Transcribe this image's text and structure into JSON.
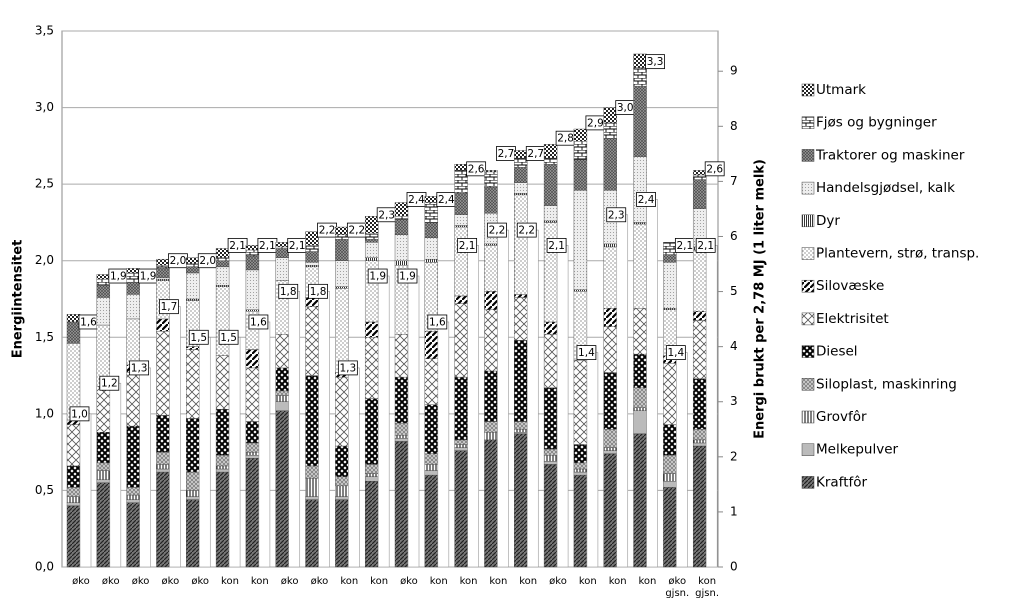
{
  "chart_data": {
    "type": "stacked_bar",
    "y_label": "Energiintensitet",
    "y2_label": "Energi brukt per 2,78 MJ (1 liter melk)",
    "categories": [
      "øko",
      "øko",
      "øko",
      "øko",
      "øko",
      "kon",
      "kon",
      "øko",
      "øko",
      "kon",
      "kon",
      "øko",
      "kon",
      "kon",
      "kon",
      "kon",
      "øko",
      "kon",
      "kon",
      "kon",
      "øko gjsn.",
      "kon gjsn."
    ],
    "series": [
      {
        "name": "Kraftfôr",
        "values": [
          0.4,
          0.55,
          0.42,
          0.62,
          0.44,
          0.62,
          0.71,
          1.02,
          0.44,
          0.44,
          0.56,
          0.82,
          0.6,
          0.76,
          0.83,
          0.87,
          0.67,
          0.6,
          0.74,
          0.87,
          0.52,
          0.79
        ]
      },
      {
        "name": "Melkepulver",
        "values": [
          0.02,
          0.02,
          0.02,
          0.02,
          0.02,
          0.02,
          0.02,
          0.06,
          0.02,
          0.02,
          0.03,
          0.02,
          0.03,
          0.02,
          0,
          0.01,
          0.02,
          0.02,
          0.02,
          0.15,
          0.04,
          0.02
        ]
      },
      {
        "name": "Grovfôr",
        "values": [
          0.04,
          0.06,
          0.03,
          0.03,
          0.04,
          0.02,
          0.02,
          0.04,
          0.12,
          0.07,
          0.02,
          0.02,
          0.04,
          0.02,
          0.05,
          0.02,
          0.04,
          0.02,
          0.02,
          0.02,
          0.05,
          0.02
        ]
      },
      {
        "name": "Siloplast, maskinring",
        "values": [
          0.06,
          0.05,
          0.05,
          0.08,
          0.12,
          0.07,
          0.06,
          0.03,
          0.08,
          0.06,
          0.06,
          0.08,
          0.07,
          0.03,
          0.07,
          0.05,
          0.04,
          0.04,
          0.12,
          0.13,
          0.12,
          0.07
        ]
      },
      {
        "name": "Diesel",
        "values": [
          0.14,
          0.2,
          0.4,
          0.24,
          0.35,
          0.3,
          0.14,
          0.15,
          0.59,
          0.2,
          0.43,
          0.3,
          0.32,
          0.41,
          0.33,
          0.53,
          0.4,
          0.12,
          0.37,
          0.22,
          0.2,
          0.33
        ]
      },
      {
        "name": "Elektrisitet",
        "values": [
          0.27,
          0.3,
          0.35,
          0.55,
          0.45,
          0.35,
          0.35,
          0.22,
          0.45,
          0.45,
          0.4,
          0.28,
          0.3,
          0.48,
          0.4,
          0.28,
          0.35,
          0.55,
          0.3,
          0.3,
          0.4,
          0.38
        ]
      },
      {
        "name": "Silovæske",
        "values": [
          0.03,
          0,
          0.05,
          0.08,
          0.02,
          0,
          0.12,
          0,
          0.06,
          0.03,
          0.1,
          0,
          0.18,
          0.05,
          0.12,
          0.02,
          0.08,
          0,
          0.12,
          0,
          0.05,
          0.06
        ]
      },
      {
        "name": "Plantevern, strø, transp.",
        "values": [
          0.5,
          0.4,
          0.3,
          0.25,
          0.3,
          0.45,
          0.25,
          0.35,
          0.2,
          0.55,
          0.4,
          0.45,
          0.45,
          0.45,
          0.3,
          0.65,
          0.65,
          0.45,
          0.4,
          0.55,
          0.3,
          0.4
        ]
      },
      {
        "name": "Dyr",
        "values": [
          0,
          0,
          0,
          0.01,
          0.01,
          0.01,
          0.01,
          0,
          0.01,
          0.01,
          0.02,
          0.03,
          0.02,
          0.01,
          0.01,
          0.01,
          0.01,
          0.01,
          0.02,
          0.01,
          0.01,
          0.02
        ]
      },
      {
        "name": "Handelsgjødsel, kalk",
        "values": [
          0,
          0.18,
          0.16,
          0.01,
          0.17,
          0.12,
          0.26,
          0.15,
          0.02,
          0.17,
          0.1,
          0.17,
          0.14,
          0.07,
          0.2,
          0.07,
          0.1,
          0.65,
          0.35,
          0.43,
          0.3,
          0.25
        ]
      },
      {
        "name": "Traktorer og maskiner",
        "values": [
          0.14,
          0.08,
          0.08,
          0.06,
          0.04,
          0.04,
          0.09,
          0.06,
          0.07,
          0.14,
          0.02,
          0.1,
          0.1,
          0.14,
          0.17,
          0.1,
          0.27,
          0.2,
          0.34,
          0.46,
          0.05,
          0.19
        ]
      },
      {
        "name": "Fjøs og bygninger",
        "values": [
          0,
          0.04,
          0.06,
          0.02,
          0.02,
          0.02,
          0.04,
          0.01,
          0.04,
          0.03,
          0.04,
          0.02,
          0.13,
          0.15,
          0.1,
          0.06,
          0.04,
          0.12,
          0.1,
          0.12,
          0.08,
          0.03
        ]
      },
      {
        "name": "Utmark",
        "values": [
          0.05,
          0.03,
          0.03,
          0.04,
          0.04,
          0.06,
          0.03,
          0.03,
          0.09,
          0.05,
          0.11,
          0.09,
          0.04,
          0.04,
          0.01,
          0.05,
          0.09,
          0.08,
          0.1,
          0.09,
          0,
          0.03
        ]
      }
    ],
    "totals": {
      "values": [
        1.6,
        1.9,
        1.9,
        2.0,
        2.0,
        2.1,
        2.1,
        2.1,
        2.2,
        2.2,
        2.3,
        2.4,
        2.4,
        2.6,
        2.7,
        2.7,
        2.8,
        2.9,
        3.0,
        3.3,
        2.1,
        2.6
      ],
      "value_labels": [
        "1,6",
        "1,9",
        "1,9",
        "2,0",
        "2,0",
        "2,1",
        "2,1",
        "2,1",
        "2,2",
        "2,2",
        "2,3",
        "2,4",
        "2,4",
        "2,6",
        "2,7",
        "2,7",
        "2,8",
        "2,9",
        "3,0",
        "3,3",
        "2,1",
        "2,6"
      ]
    },
    "energy_bars": {
      "values": [
        1.0,
        1.2,
        1.3,
        1.7,
        1.5,
        1.5,
        1.6,
        1.8,
        1.8,
        1.3,
        1.9,
        1.9,
        1.6,
        2.1,
        2.2,
        2.2,
        2.1,
        1.4,
        2.3,
        2.4,
        1.4,
        2.1
      ],
      "value_labels": [
        "1,0",
        "1,2",
        "1,3",
        "1,7",
        "1,5",
        "1,5",
        "1,6",
        "1,8",
        "1,8",
        "1,3",
        "1,9",
        "1,9",
        "1,6",
        "2,1",
        "2,2",
        "2,2",
        "2,1",
        "1,4",
        "2,3",
        "2,4",
        "1,4",
        "2,1"
      ]
    },
    "ylim": [
      0,
      3.5
    ],
    "yticks": [
      {
        "value": 0,
        "label": "0,0"
      },
      {
        "value": 0.5,
        "label": "0,5"
      },
      {
        "value": 1,
        "label": "1,0"
      },
      {
        "value": 1.5,
        "label": "1,5"
      },
      {
        "value": 2,
        "label": "2,0"
      },
      {
        "value": 2.5,
        "label": "2,5"
      },
      {
        "value": 3,
        "label": "3,0"
      },
      {
        "value": 3.5,
        "label": "3,5"
      }
    ],
    "y2lim": [
      0,
      9.73
    ],
    "y2ticks": [
      0,
      1,
      2,
      3,
      4,
      5,
      6,
      7,
      8,
      9
    ],
    "grid": true,
    "legend": "right"
  }
}
